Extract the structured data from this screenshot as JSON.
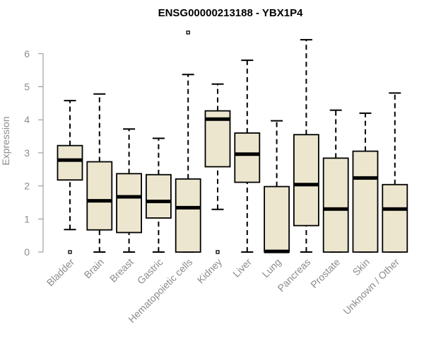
{
  "chart_data": {
    "type": "boxplot",
    "title": "ENSG00000213188 - YBX1P4",
    "ylabel": "Expression",
    "xlabel": "",
    "ylim": [
      0,
      6.7
    ],
    "yticks": [
      "0",
      "1",
      "2",
      "3",
      "4",
      "5",
      "6"
    ],
    "categories": [
      "Bladder",
      "Brain",
      "Breast",
      "Gastric",
      "Hematopoietic cells",
      "Kidney",
      "Liver",
      "Lung",
      "Pancreas",
      "Prostate",
      "Skin",
      "Unknown / Other"
    ],
    "boxes": [
      {
        "whisker_low": 0.68,
        "q1": 2.18,
        "median": 2.78,
        "q3": 3.22,
        "whisker_high": 4.58,
        "outliers": [
          0.0
        ]
      },
      {
        "whisker_low": 0.0,
        "q1": 0.67,
        "median": 1.55,
        "q3": 2.73,
        "whisker_high": 4.78,
        "outliers": []
      },
      {
        "whisker_low": 0.0,
        "q1": 0.59,
        "median": 1.67,
        "q3": 2.37,
        "whisker_high": 3.72,
        "outliers": []
      },
      {
        "whisker_low": 0.0,
        "q1": 1.03,
        "median": 1.53,
        "q3": 2.34,
        "whisker_high": 3.44,
        "outliers": []
      },
      {
        "whisker_low": 0.0,
        "q1": 0.0,
        "median": 1.34,
        "q3": 2.21,
        "whisker_high": 5.37,
        "outliers": [
          6.64
        ]
      },
      {
        "whisker_low": 1.29,
        "q1": 2.58,
        "median": 4.02,
        "q3": 4.27,
        "whisker_high": 5.08,
        "outliers": [
          0.0
        ]
      },
      {
        "whisker_low": 0.0,
        "q1": 2.11,
        "median": 2.96,
        "q3": 3.6,
        "whisker_high": 5.8,
        "outliers": []
      },
      {
        "whisker_low": 0.0,
        "q1": 0.0,
        "median": 0.02,
        "q3": 1.98,
        "whisker_high": 3.97,
        "outliers": []
      },
      {
        "whisker_low": 0.0,
        "q1": 0.8,
        "median": 2.04,
        "q3": 3.55,
        "whisker_high": 6.42,
        "outliers": []
      },
      {
        "whisker_low": 0.0,
        "q1": 0.0,
        "median": 1.3,
        "q3": 2.84,
        "whisker_high": 4.29,
        "outliers": []
      },
      {
        "whisker_low": 0.0,
        "q1": 0.0,
        "median": 2.24,
        "q3": 3.05,
        "whisker_high": 4.2,
        "outliers": []
      },
      {
        "whisker_low": 0.0,
        "q1": 0.0,
        "median": 1.3,
        "q3": 2.04,
        "whisker_high": 4.81,
        "outliers": []
      }
    ],
    "colors": {
      "box_fill": "#ede6cf",
      "stroke": "#000000",
      "axis": "#8c8c8c",
      "text": "#8c8c8c"
    },
    "grid": false,
    "legend": "none"
  }
}
